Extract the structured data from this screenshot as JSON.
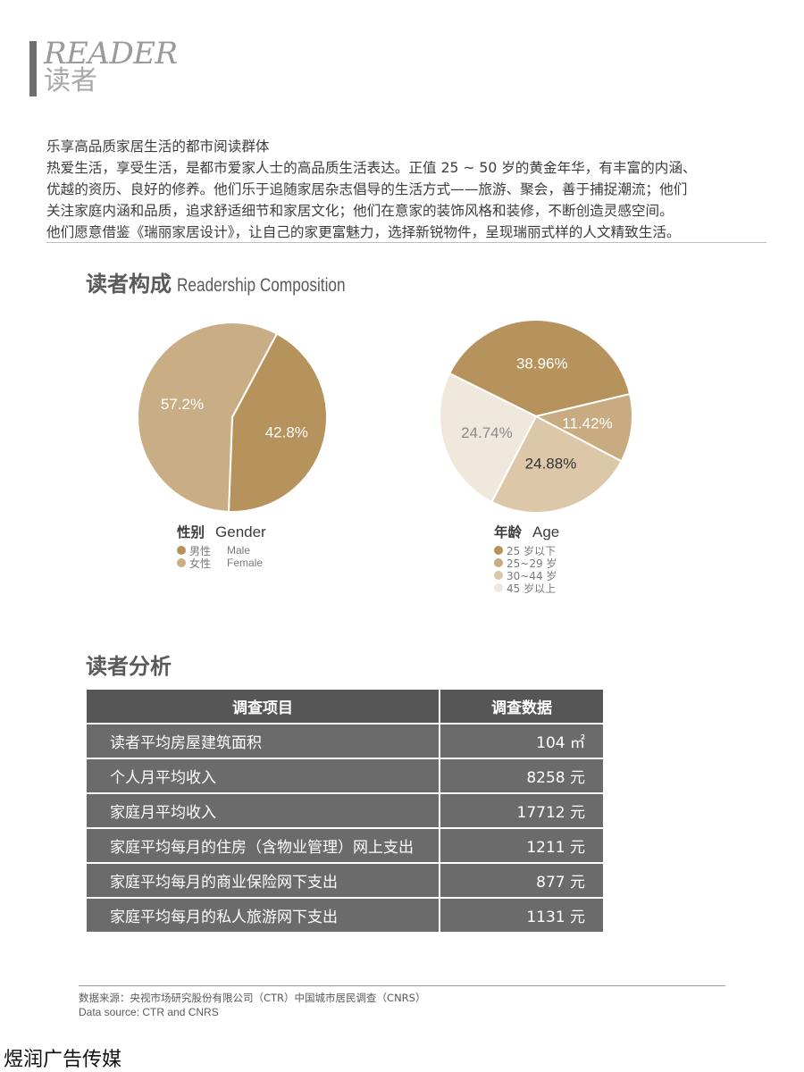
{
  "header": {
    "title_en": "READER",
    "title_cn": "读者"
  },
  "intro": {
    "lines": [
      "乐享高品质家居生活的都市阅读群体",
      "热爱生活，享受生活，是都市爱家人士的高品质生活表达。正值 25 ~ 50 岁的黄金年华，有丰富的内涵、",
      "优越的资历、良好的修养。他们乐于追随家居杂志倡导的生活方式——旅游、聚会，善于捕捉潮流；他们",
      "关注家庭内涵和品质，追求舒适细节和家居文化；他们在意家的装饰风格和装修，不断创造灵感空间。",
      "他们愿意借鉴《瑞丽家居设计》，让自己的家更富魅力，选择新锐物件，呈现瑞丽式样的人文精致生活。"
    ]
  },
  "composition": {
    "title_cn": "读者构成",
    "title_en": "Readership Composition"
  },
  "chart_data": [
    {
      "type": "pie",
      "title": "性别 Gender",
      "title_cn": "性别",
      "title_en": "Gender",
      "categories": [
        "男性",
        "女性"
      ],
      "categories_en": [
        "Male",
        "Female"
      ],
      "values": [
        42.8,
        57.2
      ],
      "labels": [
        "42.8%",
        "57.2%"
      ],
      "colors": [
        "#b6935c",
        "#c9ad84"
      ],
      "label_colors": [
        "#ffffff",
        "#ffffff"
      ]
    },
    {
      "type": "pie",
      "title": "年龄 Age",
      "title_cn": "年龄",
      "title_en": "Age",
      "categories": [
        "25 岁以下",
        "25~29 岁",
        "30~44 岁",
        "45 岁以上"
      ],
      "values": [
        38.96,
        11.42,
        24.88,
        24.74
      ],
      "labels": [
        "38.96%",
        "11.42%",
        "24.88%",
        "24.74%"
      ],
      "colors": [
        "#b6935c",
        "#c8ab80",
        "#dcc7a8",
        "#efe8dc"
      ],
      "label_colors": [
        "#ffffff",
        "#ffffff",
        "#333333",
        "#8a8a8a"
      ]
    }
  ],
  "analysis": {
    "title": "读者分析",
    "headers": [
      "调查项目",
      "调查数据"
    ],
    "rows": [
      {
        "item": "读者平均房屋建筑面积",
        "value": "104 ㎡"
      },
      {
        "item": "个人月平均收入",
        "value": "8258 元"
      },
      {
        "item": "家庭月平均收入",
        "value": "17712 元"
      },
      {
        "item": "家庭平均每月的住房（含物业管理）网上支出",
        "value": "1211 元"
      },
      {
        "item": "家庭平均每月的商业保险网下支出",
        "value": "877 元"
      },
      {
        "item": "家庭平均每月的私人旅游网下支出",
        "value": "1131 元"
      }
    ]
  },
  "source": {
    "cn": "数据来源：央视市场研究股份有限公司（CTR）中国城市居民调查（CNRS）",
    "en": "Data source: CTR and CNRS"
  },
  "watermark": "煜润广告传媒"
}
